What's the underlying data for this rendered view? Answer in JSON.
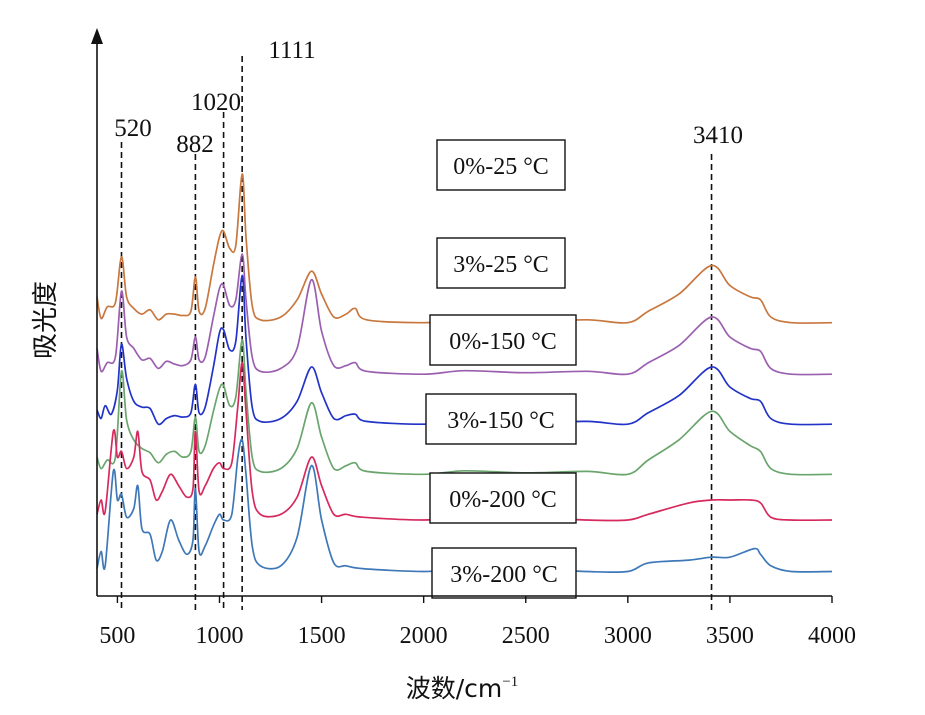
{
  "chart_data": {
    "type": "line",
    "xlabel": "波数/cm",
    "xlabel_sup": "−1",
    "ylabel": "吸光度",
    "xlim": [
      400,
      4000
    ],
    "x_ticks": [
      "500",
      "1000",
      "1500",
      "2000",
      "2500",
      "3000",
      "3500",
      "4000"
    ],
    "y_ticks_shown": false,
    "grid": false,
    "reference_lines": [
      {
        "x": 520,
        "label": "520"
      },
      {
        "x": 882,
        "label": "882"
      },
      {
        "x": 1020,
        "label": "1020"
      },
      {
        "x": 1111,
        "label": "1111"
      },
      {
        "x": 3410,
        "label": "3410"
      }
    ],
    "series": [
      {
        "name": "0%-25 °C",
        "color": "#c8773e",
        "offset": 0.62,
        "points": [
          [
            400,
            0.09
          ],
          [
            420,
            0.015
          ],
          [
            450,
            0.055
          ],
          [
            490,
            0.07
          ],
          [
            520,
            0.23
          ],
          [
            545,
            0.09
          ],
          [
            580,
            0.05
          ],
          [
            620,
            0.03
          ],
          [
            660,
            0.045
          ],
          [
            700,
            0.01
          ],
          [
            740,
            0.03
          ],
          [
            780,
            0.03
          ],
          [
            820,
            0.025
          ],
          [
            860,
            0.04
          ],
          [
            882,
            0.16
          ],
          [
            900,
            0.04
          ],
          [
            930,
            0.05
          ],
          [
            970,
            0.2
          ],
          [
            1000,
            0.3
          ],
          [
            1020,
            0.32
          ],
          [
            1050,
            0.26
          ],
          [
            1080,
            0.27
          ],
          [
            1111,
            0.52
          ],
          [
            1130,
            0.3
          ],
          [
            1160,
            0.06
          ],
          [
            1200,
            0.01
          ],
          [
            1300,
            0.02
          ],
          [
            1380,
            0.08
          ],
          [
            1450,
            0.18
          ],
          [
            1500,
            0.1
          ],
          [
            1560,
            0.02
          ],
          [
            1620,
            0.03
          ],
          [
            1665,
            0.05
          ],
          [
            1720,
            0.01
          ],
          [
            2000,
            0.0
          ],
          [
            2200,
            0.012
          ],
          [
            2500,
            0.005
          ],
          [
            2800,
            0.01
          ],
          [
            3000,
            0.0
          ],
          [
            3100,
            0.04
          ],
          [
            3250,
            0.1
          ],
          [
            3410,
            0.2
          ],
          [
            3500,
            0.13
          ],
          [
            3600,
            0.09
          ],
          [
            3650,
            0.08
          ],
          [
            3700,
            0.02
          ],
          [
            3800,
            0.0
          ],
          [
            4000,
            0.0
          ]
        ]
      },
      {
        "name": "3%-25 °C",
        "color": "#9b5fb0",
        "offset": 0.44,
        "points": [
          [
            400,
            0.09
          ],
          [
            420,
            0.01
          ],
          [
            450,
            0.04
          ],
          [
            490,
            0.06
          ],
          [
            520,
            0.29
          ],
          [
            545,
            0.13
          ],
          [
            580,
            0.09
          ],
          [
            620,
            0.05
          ],
          [
            660,
            0.055
          ],
          [
            700,
            0.02
          ],
          [
            740,
            0.045
          ],
          [
            780,
            0.035
          ],
          [
            820,
            0.03
          ],
          [
            860,
            0.05
          ],
          [
            882,
            0.13
          ],
          [
            900,
            0.05
          ],
          [
            930,
            0.06
          ],
          [
            970,
            0.2
          ],
          [
            1000,
            0.3
          ],
          [
            1020,
            0.31
          ],
          [
            1050,
            0.24
          ],
          [
            1080,
            0.26
          ],
          [
            1111,
            0.42
          ],
          [
            1130,
            0.26
          ],
          [
            1160,
            0.06
          ],
          [
            1200,
            0.01
          ],
          [
            1300,
            0.02
          ],
          [
            1380,
            0.09
          ],
          [
            1450,
            0.33
          ],
          [
            1500,
            0.15
          ],
          [
            1560,
            0.03
          ],
          [
            1620,
            0.03
          ],
          [
            1665,
            0.04
          ],
          [
            1720,
            0.01
          ],
          [
            2000,
            0.0
          ],
          [
            2200,
            0.012
          ],
          [
            2500,
            0.005
          ],
          [
            2800,
            0.01
          ],
          [
            3000,
            0.0
          ],
          [
            3100,
            0.04
          ],
          [
            3250,
            0.1
          ],
          [
            3410,
            0.2
          ],
          [
            3500,
            0.13
          ],
          [
            3600,
            0.09
          ],
          [
            3650,
            0.08
          ],
          [
            3700,
            0.02
          ],
          [
            3800,
            0.0
          ],
          [
            4000,
            0.0
          ]
        ]
      },
      {
        "name": "0%-150 °C",
        "color": "#2233c8",
        "offset": 0.265,
        "points": [
          [
            400,
            0.05
          ],
          [
            420,
            0.02
          ],
          [
            440,
            0.065
          ],
          [
            470,
            0.035
          ],
          [
            500,
            0.12
          ],
          [
            520,
            0.28
          ],
          [
            545,
            0.16
          ],
          [
            580,
            0.08
          ],
          [
            620,
            0.06
          ],
          [
            660,
            0.055
          ],
          [
            700,
            0.0
          ],
          [
            740,
            0.02
          ],
          [
            780,
            0.03
          ],
          [
            820,
            0.025
          ],
          [
            860,
            0.04
          ],
          [
            882,
            0.14
          ],
          [
            900,
            0.04
          ],
          [
            930,
            0.06
          ],
          [
            970,
            0.2
          ],
          [
            1000,
            0.32
          ],
          [
            1020,
            0.33
          ],
          [
            1050,
            0.26
          ],
          [
            1080,
            0.29
          ],
          [
            1111,
            0.52
          ],
          [
            1130,
            0.3
          ],
          [
            1160,
            0.06
          ],
          [
            1200,
            0.01
          ],
          [
            1300,
            0.02
          ],
          [
            1380,
            0.08
          ],
          [
            1450,
            0.2
          ],
          [
            1500,
            0.11
          ],
          [
            1560,
            0.02
          ],
          [
            1620,
            0.03
          ],
          [
            1665,
            0.035
          ],
          [
            1720,
            0.01
          ],
          [
            2000,
            0.0
          ],
          [
            2200,
            0.012
          ],
          [
            2500,
            0.005
          ],
          [
            2800,
            0.01
          ],
          [
            3000,
            0.0
          ],
          [
            3100,
            0.04
          ],
          [
            3250,
            0.1
          ],
          [
            3410,
            0.2
          ],
          [
            3500,
            0.13
          ],
          [
            3600,
            0.09
          ],
          [
            3650,
            0.08
          ],
          [
            3700,
            0.02
          ],
          [
            3800,
            0.0
          ],
          [
            4000,
            0.0
          ]
        ]
      },
      {
        "name": "3%-150 °C",
        "color": "#6aa56d",
        "offset": 0.09,
        "points": [
          [
            400,
            0.06
          ],
          [
            420,
            0.02
          ],
          [
            450,
            0.05
          ],
          [
            490,
            0.06
          ],
          [
            520,
            0.36
          ],
          [
            545,
            0.19
          ],
          [
            580,
            0.12
          ],
          [
            620,
            0.09
          ],
          [
            660,
            0.075
          ],
          [
            700,
            0.04
          ],
          [
            740,
            0.07
          ],
          [
            780,
            0.08
          ],
          [
            820,
            0.06
          ],
          [
            860,
            0.08
          ],
          [
            882,
            0.2
          ],
          [
            900,
            0.08
          ],
          [
            930,
            0.1
          ],
          [
            970,
            0.22
          ],
          [
            1000,
            0.3
          ],
          [
            1020,
            0.31
          ],
          [
            1050,
            0.24
          ],
          [
            1080,
            0.27
          ],
          [
            1111,
            0.47
          ],
          [
            1130,
            0.29
          ],
          [
            1160,
            0.06
          ],
          [
            1200,
            0.01
          ],
          [
            1300,
            0.02
          ],
          [
            1380,
            0.09
          ],
          [
            1450,
            0.25
          ],
          [
            1500,
            0.13
          ],
          [
            1560,
            0.02
          ],
          [
            1620,
            0.03
          ],
          [
            1665,
            0.04
          ],
          [
            1720,
            0.01
          ],
          [
            2000,
            0.0
          ],
          [
            2200,
            0.012
          ],
          [
            2500,
            0.005
          ],
          [
            2800,
            0.01
          ],
          [
            3000,
            0.0
          ],
          [
            3100,
            0.05
          ],
          [
            3250,
            0.12
          ],
          [
            3410,
            0.22
          ],
          [
            3500,
            0.15
          ],
          [
            3600,
            0.1
          ],
          [
            3650,
            0.08
          ],
          [
            3700,
            0.02
          ],
          [
            3800,
            0.0
          ],
          [
            4000,
            0.0
          ]
        ]
      },
      {
        "name": "0%-200 °C",
        "color": "#d62a5e",
        "offset": -0.07,
        "points": [
          [
            400,
            0.02
          ],
          [
            420,
            0.07
          ],
          [
            440,
            0.03
          ],
          [
            480,
            0.31
          ],
          [
            500,
            0.22
          ],
          [
            520,
            0.24
          ],
          [
            545,
            0.18
          ],
          [
            580,
            0.22
          ],
          [
            600,
            0.31
          ],
          [
            620,
            0.17
          ],
          [
            660,
            0.14
          ],
          [
            690,
            0.07
          ],
          [
            720,
            0.1
          ],
          [
            760,
            0.16
          ],
          [
            800,
            0.12
          ],
          [
            840,
            0.08
          ],
          [
            870,
            0.11
          ],
          [
            882,
            0.31
          ],
          [
            900,
            0.1
          ],
          [
            930,
            0.12
          ],
          [
            970,
            0.18
          ],
          [
            1000,
            0.2
          ],
          [
            1020,
            0.18
          ],
          [
            1060,
            0.2
          ],
          [
            1090,
            0.4
          ],
          [
            1111,
            0.55
          ],
          [
            1130,
            0.38
          ],
          [
            1160,
            0.1
          ],
          [
            1200,
            0.02
          ],
          [
            1300,
            0.02
          ],
          [
            1380,
            0.08
          ],
          [
            1450,
            0.22
          ],
          [
            1500,
            0.12
          ],
          [
            1560,
            0.02
          ],
          [
            1620,
            0.02
          ],
          [
            1700,
            0.01
          ],
          [
            2000,
            0.0
          ],
          [
            2200,
            0.01
          ],
          [
            2500,
            0.01
          ],
          [
            2800,
            0.0
          ],
          [
            3000,
            0.0
          ],
          [
            3100,
            0.02
          ],
          [
            3300,
            0.06
          ],
          [
            3410,
            0.07
          ],
          [
            3500,
            0.07
          ],
          [
            3600,
            0.07
          ],
          [
            3650,
            0.06
          ],
          [
            3700,
            0.01
          ],
          [
            3800,
            0.0
          ],
          [
            4000,
            0.0
          ]
        ]
      },
      {
        "name": "3%-200 °C",
        "color": "#3f78b8",
        "offset": -0.25,
        "points": [
          [
            400,
            0.01
          ],
          [
            420,
            0.07
          ],
          [
            440,
            0.02
          ],
          [
            480,
            0.35
          ],
          [
            500,
            0.25
          ],
          [
            520,
            0.27
          ],
          [
            545,
            0.19
          ],
          [
            580,
            0.22
          ],
          [
            600,
            0.3
          ],
          [
            620,
            0.15
          ],
          [
            660,
            0.13
          ],
          [
            690,
            0.04
          ],
          [
            720,
            0.07
          ],
          [
            760,
            0.18
          ],
          [
            800,
            0.11
          ],
          [
            840,
            0.06
          ],
          [
            870,
            0.11
          ],
          [
            882,
            0.29
          ],
          [
            900,
            0.07
          ],
          [
            930,
            0.09
          ],
          [
            970,
            0.16
          ],
          [
            1000,
            0.2
          ],
          [
            1020,
            0.18
          ],
          [
            1060,
            0.2
          ],
          [
            1090,
            0.4
          ],
          [
            1111,
            0.46
          ],
          [
            1130,
            0.34
          ],
          [
            1160,
            0.09
          ],
          [
            1200,
            0.02
          ],
          [
            1300,
            0.02
          ],
          [
            1380,
            0.12
          ],
          [
            1450,
            0.37
          ],
          [
            1500,
            0.18
          ],
          [
            1560,
            0.03
          ],
          [
            1620,
            0.02
          ],
          [
            1700,
            0.01
          ],
          [
            2000,
            0.0
          ],
          [
            2200,
            0.01
          ],
          [
            2500,
            0.01
          ],
          [
            2800,
            0.0
          ],
          [
            3000,
            0.0
          ],
          [
            3100,
            0.03
          ],
          [
            3300,
            0.04
          ],
          [
            3410,
            0.05
          ],
          [
            3500,
            0.05
          ],
          [
            3620,
            0.08
          ],
          [
            3650,
            0.06
          ],
          [
            3700,
            0.02
          ],
          [
            3800,
            0.0
          ],
          [
            4000,
            0.0
          ]
        ]
      }
    ]
  }
}
